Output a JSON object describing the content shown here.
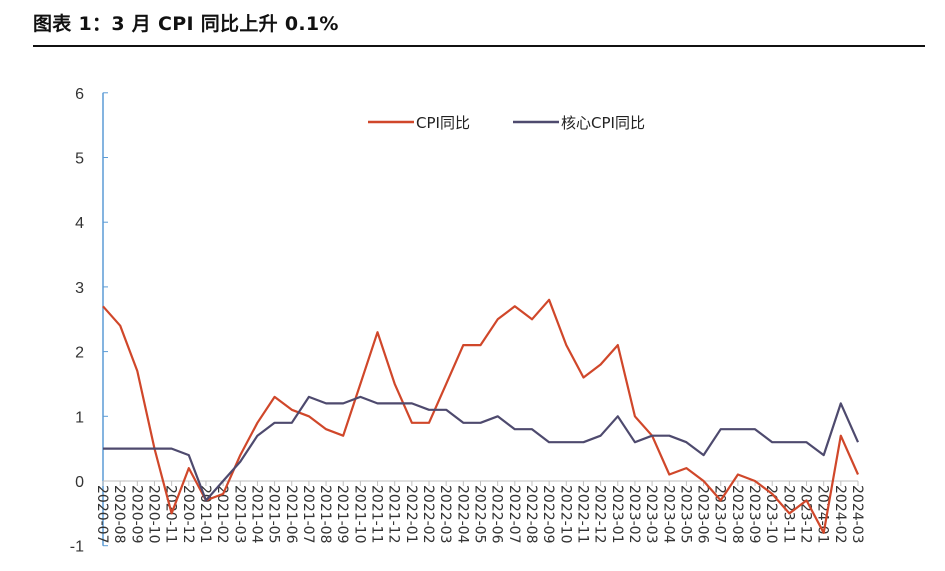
{
  "title": "图表 1：3 月 CPI 同比上升 0.1%",
  "chart_data": {
    "type": "line",
    "title": "",
    "xlabel": "",
    "ylabel": "",
    "ylim": [
      -1,
      6
    ],
    "yticks": [
      -1,
      0,
      1,
      2,
      3,
      4,
      5,
      6
    ],
    "grid": false,
    "legend_position": "top-center",
    "x": [
      "2020-07",
      "2020-08",
      "2020-09",
      "2020-10",
      "2020-11",
      "2020-12",
      "2021-01",
      "2021-02",
      "2021-03",
      "2021-04",
      "2021-05",
      "2021-06",
      "2021-07",
      "2021-08",
      "2021-09",
      "2021-10",
      "2021-11",
      "2021-12",
      "2022-01",
      "2022-02",
      "2022-03",
      "2022-04",
      "2022-05",
      "2022-06",
      "2022-07",
      "2022-08",
      "2022-09",
      "2022-10",
      "2022-11",
      "2022-12",
      "2023-01",
      "2023-02",
      "2023-03",
      "2023-04",
      "2023-05",
      "2023-06",
      "2023-07",
      "2023-08",
      "2023-09",
      "2023-10",
      "2023-11",
      "2023-12",
      "2024-01",
      "2024-02",
      "2024-03"
    ],
    "series": [
      {
        "name": "CPI同比",
        "color": "#D0472A",
        "values": [
          2.7,
          2.4,
          1.7,
          0.5,
          -0.5,
          0.2,
          -0.3,
          -0.2,
          0.4,
          0.9,
          1.3,
          1.1,
          1.0,
          0.8,
          0.7,
          1.5,
          2.3,
          1.5,
          0.9,
          0.9,
          1.5,
          2.1,
          2.1,
          2.5,
          2.7,
          2.5,
          2.8,
          2.1,
          1.6,
          1.8,
          2.1,
          1.0,
          0.7,
          0.1,
          0.2,
          0.0,
          -0.3,
          0.1,
          0.0,
          -0.2,
          -0.5,
          -0.3,
          -0.8,
          0.7,
          0.1
        ]
      },
      {
        "name": "核心CPI同比",
        "color": "#4E4A6E",
        "values": [
          0.5,
          0.5,
          0.5,
          0.5,
          0.5,
          0.4,
          -0.3,
          0.0,
          0.3,
          0.7,
          0.9,
          0.9,
          1.3,
          1.2,
          1.2,
          1.3,
          1.2,
          1.2,
          1.2,
          1.1,
          1.1,
          0.9,
          0.9,
          1.0,
          0.8,
          0.8,
          0.6,
          0.6,
          0.6,
          0.7,
          1.0,
          0.6,
          0.7,
          0.7,
          0.6,
          0.4,
          0.8,
          0.8,
          0.8,
          0.6,
          0.6,
          0.6,
          0.4,
          1.2,
          0.6
        ]
      }
    ]
  }
}
